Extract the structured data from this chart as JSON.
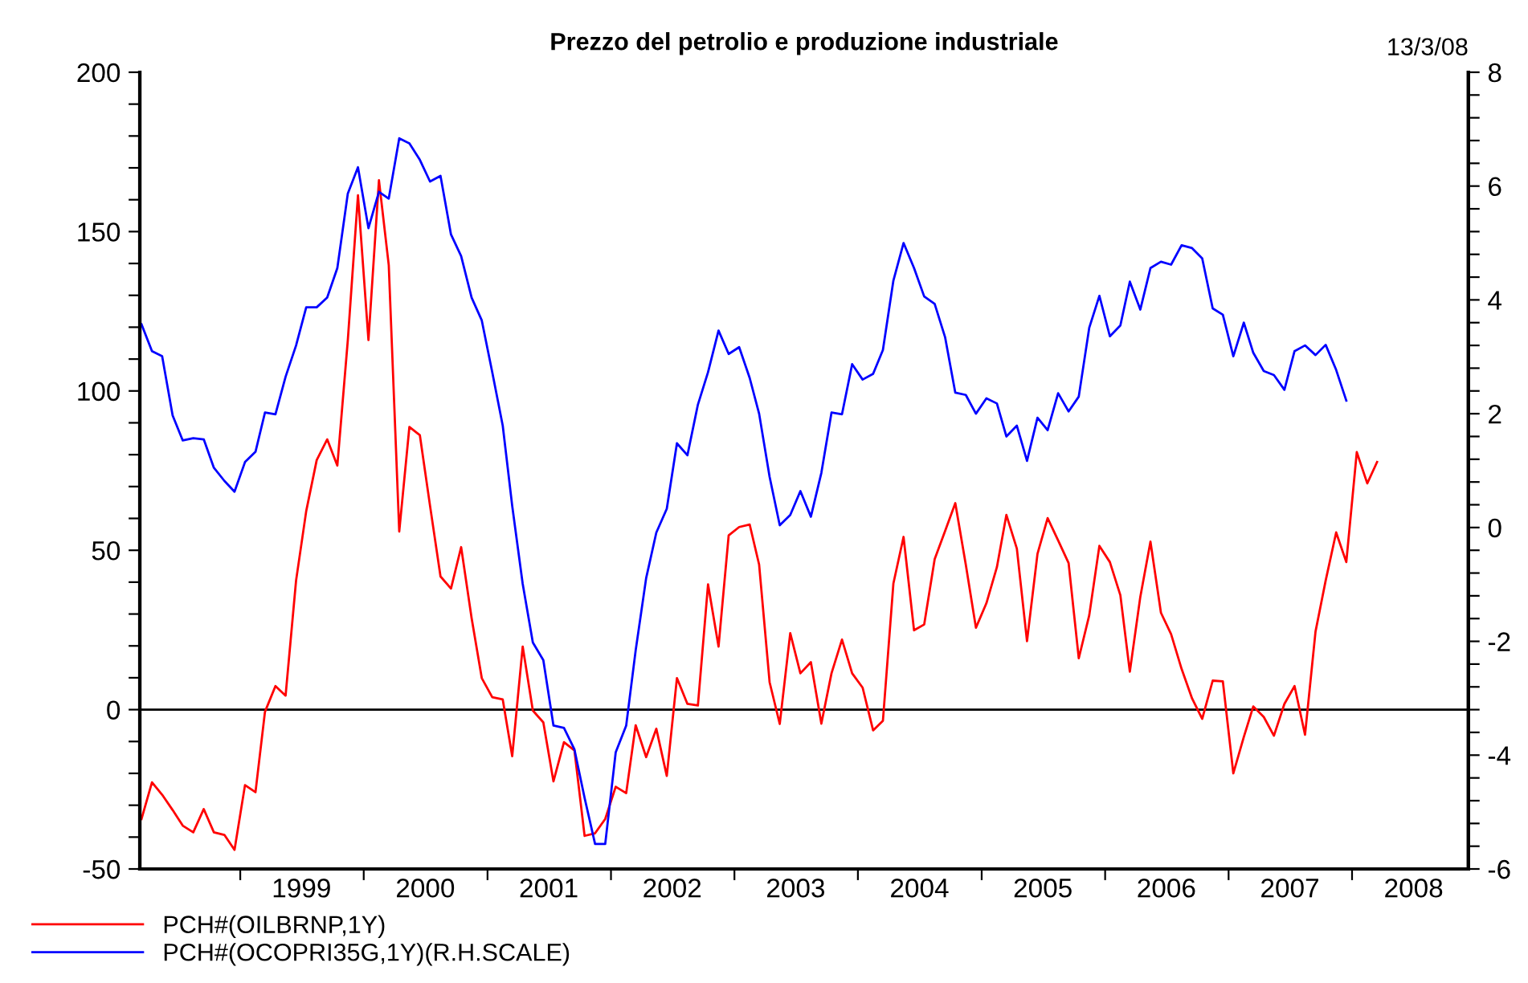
{
  "chart_data": {
    "type": "line",
    "title": "Prezzo del petrolio e produzione industriale",
    "annotations": [
      "13/3/08"
    ],
    "x": [
      "1998-03-15",
      "1998-04-15",
      "1998-05-15",
      "1998-06-15",
      "1998-07-15",
      "1998-08-15",
      "1998-09-15",
      "1998-10-15",
      "1998-11-15",
      "1998-12-15",
      "1999-01-15",
      "1999-02-15",
      "1999-03-15",
      "1999-04-15",
      "1999-05-15",
      "1999-06-15",
      "1999-07-15",
      "1999-08-15",
      "1999-09-15",
      "1999-10-15",
      "1999-11-15",
      "1999-12-15",
      "2000-01-15",
      "2000-02-15",
      "2000-03-15",
      "2000-04-15",
      "2000-05-15",
      "2000-06-15",
      "2000-07-15",
      "2000-08-15",
      "2000-09-15",
      "2000-10-15",
      "2000-11-15",
      "2000-12-15",
      "2001-01-15",
      "2001-02-15",
      "2001-03-15",
      "2001-04-15",
      "2001-05-15",
      "2001-06-15",
      "2001-07-15",
      "2001-08-15",
      "2001-09-15",
      "2001-10-15",
      "2001-11-15",
      "2001-12-15",
      "2002-01-15",
      "2002-02-15",
      "2002-03-15",
      "2002-04-15",
      "2002-05-15",
      "2002-06-15",
      "2002-07-15",
      "2002-08-15",
      "2002-09-15",
      "2002-10-15",
      "2002-11-15",
      "2002-12-15",
      "2003-01-15",
      "2003-02-15",
      "2003-03-15",
      "2003-04-15",
      "2003-05-15",
      "2003-06-15",
      "2003-07-15",
      "2003-08-15",
      "2003-09-15",
      "2003-10-15",
      "2003-11-15",
      "2003-12-15",
      "2004-01-15",
      "2004-02-15",
      "2004-03-15",
      "2004-04-15",
      "2004-05-15",
      "2004-06-15",
      "2004-07-15",
      "2004-08-15",
      "2004-09-15",
      "2004-10-15",
      "2004-11-15",
      "2004-12-15",
      "2005-01-15",
      "2005-02-15",
      "2005-03-15",
      "2005-04-15",
      "2005-05-15",
      "2005-06-15",
      "2005-07-15",
      "2005-08-15",
      "2005-09-15",
      "2005-10-15",
      "2005-11-15",
      "2005-12-15",
      "2006-01-15",
      "2006-02-15",
      "2006-03-15",
      "2006-04-15",
      "2006-05-15",
      "2006-06-15",
      "2006-07-15",
      "2006-08-15",
      "2006-09-15",
      "2006-10-15",
      "2006-11-15",
      "2006-12-15",
      "2007-01-15",
      "2007-02-15",
      "2007-03-15",
      "2007-04-15",
      "2007-05-15",
      "2007-06-15",
      "2007-07-15",
      "2007-08-15",
      "2007-09-15",
      "2007-10-15",
      "2007-11-15",
      "2007-12-15",
      "2008-01-15",
      "2008-02-15",
      "2008-03-15"
    ],
    "series": [
      {
        "name": "PCH#(OILBRNP,1Y)",
        "color": "#ff0000",
        "values": [
          -34.3,
          -22.8,
          -26.7,
          -31.5,
          -36.4,
          -38.5,
          -31.2,
          -38.5,
          -39.3,
          -44.0,
          -23.7,
          -25.9,
          -0.7,
          7.4,
          4.4,
          40.5,
          62.3,
          78.3,
          84.8,
          76.6,
          116.0,
          161.4,
          116.0,
          166.1,
          139.5,
          55.9,
          88.7,
          86.1,
          64.0,
          41.8,
          38.0,
          51.0,
          28.7,
          9.9,
          3.9,
          3.2,
          -14.6,
          19.8,
          -0.3,
          -4.0,
          -22.5,
          -10.2,
          -12.8,
          -39.6,
          -38.8,
          -34.3,
          -24.2,
          -26.2,
          -4.9,
          -14.9,
          -6.0,
          -20.8,
          9.9,
          1.8,
          1.3,
          39.3,
          19.8,
          54.7,
          57.3,
          58.1,
          45.5,
          8.6,
          -4.5,
          24.0,
          11.4,
          14.9,
          -4.4,
          11.4,
          22.0,
          11.4,
          6.9,
          -6.5,
          -3.5,
          39.6,
          54.2,
          24.9,
          26.7,
          47.2,
          56.1,
          64.8,
          45.5,
          25.7,
          33.4,
          44.7,
          61.1,
          50.5,
          21.5,
          48.9,
          60.1,
          53.1,
          46.0,
          16.1,
          29.6,
          51.4,
          46.3,
          35.9,
          11.9,
          35.4,
          52.7,
          30.4,
          23.7,
          12.8,
          3.5,
          -2.9,
          9.1,
          8.9,
          -20.0,
          -8.6,
          1.0,
          -2.3,
          -8.2,
          1.8,
          7.4,
          -7.9,
          24.5,
          40.5,
          55.6,
          46.3,
          80.8,
          71.0,
          77.7
        ]
      },
      {
        "name": "PCH#(OCOPRI35G,1Y)(R.H.SCALE)",
        "color": "#0000ff",
        "axis": "y2",
        "values": [
          3.57,
          3.1,
          3.01,
          1.97,
          1.53,
          1.57,
          1.55,
          1.05,
          0.82,
          0.63,
          1.15,
          1.33,
          2.02,
          1.99,
          2.65,
          3.2,
          3.87,
          3.87,
          4.04,
          4.56,
          5.87,
          6.33,
          5.26,
          5.9,
          5.78,
          6.84,
          6.75,
          6.46,
          6.08,
          6.18,
          5.15,
          4.77,
          4.04,
          3.64,
          2.73,
          1.79,
          0.38,
          -0.99,
          -2.02,
          -2.33,
          -3.48,
          -3.52,
          -3.9,
          -4.75,
          -5.56,
          -5.56,
          -3.95,
          -3.48,
          -2.16,
          -0.89,
          -0.09,
          0.33,
          1.48,
          1.27,
          2.16,
          2.73,
          3.46,
          3.05,
          3.17,
          2.63,
          2.0,
          0.89,
          0.04,
          0.22,
          0.64,
          0.19,
          0.96,
          2.02,
          1.99,
          2.87,
          2.6,
          2.7,
          3.12,
          4.34,
          5.0,
          4.56,
          4.06,
          3.93,
          3.34,
          2.37,
          2.33,
          2.0,
          2.27,
          2.18,
          1.6,
          1.79,
          1.17,
          1.93,
          1.71,
          2.36,
          2.04,
          2.3,
          3.51,
          4.07,
          3.36,
          3.55,
          4.32,
          3.83,
          4.56,
          4.67,
          4.62,
          4.96,
          4.91,
          4.73,
          3.85,
          3.74,
          3.01,
          3.6,
          3.07,
          2.75,
          2.68,
          2.42,
          3.1,
          3.2,
          3.03,
          3.21,
          2.77,
          2.23,
          null,
          null,
          null
        ]
      }
    ],
    "xlim": [
      "1998-03-10",
      "2008-12-10"
    ],
    "xticks": [
      {
        "value": "1999-01",
        "label": null
      },
      {
        "value": "2000-01",
        "label": null
      },
      {
        "value": "2001-01",
        "label": null
      },
      {
        "value": "2002-01",
        "label": null
      },
      {
        "value": "2003-01",
        "label": null
      },
      {
        "value": "2004-01",
        "label": null
      },
      {
        "value": "2005-01",
        "label": null
      },
      {
        "value": "2006-01",
        "label": null
      },
      {
        "value": "2007-01",
        "label": null
      },
      {
        "value": "2008-01",
        "label": null
      },
      {
        "value": "1999-07",
        "label": "1999"
      },
      {
        "value": "2000-07",
        "label": "2000"
      },
      {
        "value": "2001-07",
        "label": "2001"
      },
      {
        "value": "2002-07",
        "label": "2002"
      },
      {
        "value": "2003-07",
        "label": "2003"
      },
      {
        "value": "2004-07",
        "label": "2004"
      },
      {
        "value": "2005-07",
        "label": "2005"
      },
      {
        "value": "2006-07",
        "label": "2006"
      },
      {
        "value": "2007-07",
        "label": "2007"
      },
      {
        "value": "2008-07",
        "label": "2008"
      }
    ],
    "ylim": [
      -50,
      200
    ],
    "yticks": [
      -50,
      {
        "value": -40,
        "label": null
      },
      {
        "value": -30,
        "label": null
      },
      {
        "value": -20,
        "label": null
      },
      {
        "value": -10,
        "label": null
      },
      0,
      {
        "value": 10,
        "label": null
      },
      {
        "value": 20,
        "label": null
      },
      {
        "value": 30,
        "label": null
      },
      {
        "value": 40,
        "label": null
      },
      50,
      {
        "value": 60,
        "label": null
      },
      {
        "value": 70,
        "label": null
      },
      {
        "value": 80,
        "label": null
      },
      {
        "value": 90,
        "label": null
      },
      100,
      {
        "value": 110,
        "label": null
      },
      {
        "value": 120,
        "label": null
      },
      {
        "value": 130,
        "label": null
      },
      {
        "value": 140,
        "label": null
      },
      150,
      {
        "value": 160,
        "label": null
      },
      {
        "value": 170,
        "label": null
      },
      {
        "value": 180,
        "label": null
      },
      {
        "value": 190,
        "label": null
      },
      200
    ],
    "y2lim": [
      -6,
      8
    ],
    "y2ticks": [
      -6,
      {
        "value": -5.6,
        "label": null
      },
      {
        "value": -5.2,
        "label": null
      },
      {
        "value": -4.8,
        "label": null
      },
      {
        "value": -4.4,
        "label": null
      },
      -4,
      {
        "value": -3.6,
        "label": null
      },
      {
        "value": -3.2,
        "label": null
      },
      {
        "value": -2.8,
        "label": null
      },
      {
        "value": -2.4,
        "label": null
      },
      -2,
      {
        "value": -1.6,
        "label": null
      },
      {
        "value": -1.2,
        "label": null
      },
      {
        "value": -0.8,
        "label": null
      },
      {
        "value": -0.4,
        "label": null
      },
      0,
      {
        "value": 0.4,
        "label": null
      },
      {
        "value": 0.8,
        "label": null
      },
      {
        "value": 1.2,
        "label": null
      },
      {
        "value": 1.6,
        "label": null
      },
      2,
      {
        "value": 2.4,
        "label": null
      },
      {
        "value": 2.8,
        "label": null
      },
      {
        "value": 3.2,
        "label": null
      },
      {
        "value": 3.6,
        "label": null
      },
      4,
      {
        "value": 4.4,
        "label": null
      },
      {
        "value": 4.8,
        "label": null
      },
      {
        "value": 5.2,
        "label": null
      },
      {
        "value": 5.6,
        "label": null
      },
      6,
      {
        "value": 6.4,
        "label": null
      },
      {
        "value": 6.8,
        "label": null
      },
      {
        "value": 7.2,
        "label": null
      },
      {
        "value": 7.6,
        "label": null
      },
      8
    ],
    "ref_lines": [
      {
        "axis": "y",
        "value": 0,
        "color": "#000000"
      }
    ],
    "grid": false,
    "legend": "bottom left",
    "marker": "none",
    "line_style": "solid"
  }
}
